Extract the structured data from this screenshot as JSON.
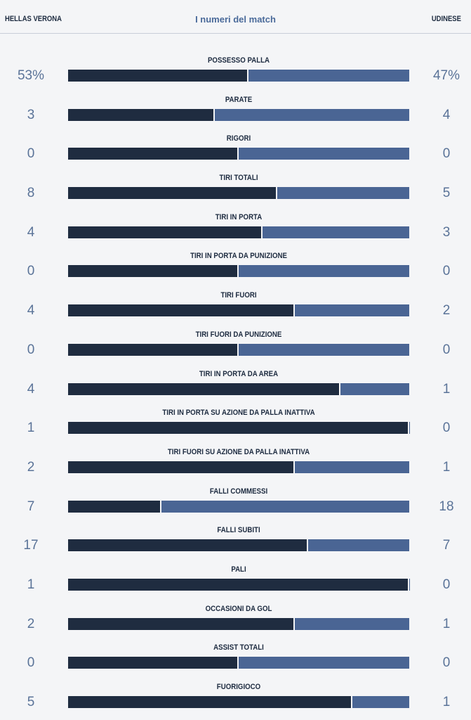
{
  "header": {
    "home_team": "HELLAS VERONA",
    "title": "I numeri del match",
    "away_team": "UDINESE"
  },
  "colors": {
    "home_bar": "#1f2c40",
    "away_bar": "#4a6594",
    "value_text": "#5a7398"
  },
  "stats": [
    {
      "label": "POSSESSO PALLA",
      "home": "53%",
      "away": "47%",
      "home_share": 0.525
    },
    {
      "label": "PARATE",
      "home": "3",
      "away": "4",
      "home_share": 0.425
    },
    {
      "label": "RIGORI",
      "home": "0",
      "away": "0",
      "home_share": 0.495
    },
    {
      "label": "TIRI TOTALI",
      "home": "8",
      "away": "5",
      "home_share": 0.61
    },
    {
      "label": "TIRI IN PORTA",
      "home": "4",
      "away": "3",
      "home_share": 0.565
    },
    {
      "label": "TIRI IN PORTA DA PUNIZIONE",
      "home": "0",
      "away": "0",
      "home_share": 0.495
    },
    {
      "label": "TIRI FUORI",
      "home": "4",
      "away": "2",
      "home_share": 0.66
    },
    {
      "label": "TIRI FUORI DA PUNIZIONE",
      "home": "0",
      "away": "0",
      "home_share": 0.495
    },
    {
      "label": "TIRI IN PORTA DA AREA",
      "home": "4",
      "away": "1",
      "home_share": 0.795
    },
    {
      "label": "TIRI IN PORTA SU AZIONE DA PALLA INATTIVA",
      "home": "1",
      "away": "0",
      "home_share": 0.995
    },
    {
      "label": "TIRI FUORI SU AZIONE DA PALLA INATTIVA",
      "home": "2",
      "away": "1",
      "home_share": 0.66
    },
    {
      "label": "FALLI COMMESSI",
      "home": "7",
      "away": "18",
      "home_share": 0.27
    },
    {
      "label": "FALLI SUBITI",
      "home": "17",
      "away": "7",
      "home_share": 0.7
    },
    {
      "label": "PALI",
      "home": "1",
      "away": "0",
      "home_share": 0.995
    },
    {
      "label": "OCCASIONI DA GOL",
      "home": "2",
      "away": "1",
      "home_share": 0.66
    },
    {
      "label": "ASSIST TOTALI",
      "home": "0",
      "away": "0",
      "home_share": 0.495
    },
    {
      "label": "FUORIGIOCO",
      "home": "5",
      "away": "1",
      "home_share": 0.83
    }
  ]
}
